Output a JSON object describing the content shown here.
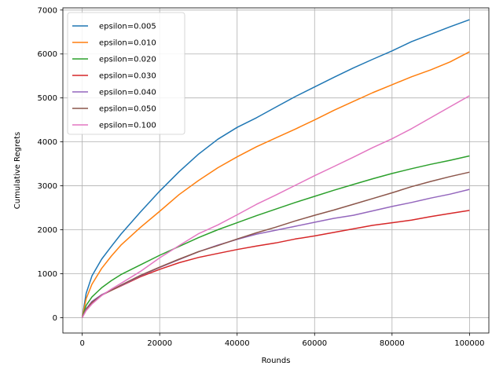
{
  "chart_data": {
    "type": "line",
    "xlabel": "Rounds",
    "ylabel": "Cumulative Regrets",
    "xlim": [
      -5000,
      105000
    ],
    "ylim": [
      -350,
      7050
    ],
    "xticks": [
      0,
      20000,
      40000,
      60000,
      80000,
      100000
    ],
    "yticks": [
      0,
      1000,
      2000,
      3000,
      4000,
      5000,
      6000,
      7000
    ],
    "grid": true,
    "legend_position": "upper-left",
    "x": [
      0,
      1000,
      2500,
      5000,
      7500,
      10000,
      15000,
      20000,
      25000,
      30000,
      35000,
      40000,
      45000,
      50000,
      55000,
      60000,
      65000,
      70000,
      75000,
      80000,
      85000,
      90000,
      95000,
      100000
    ],
    "series": [
      {
        "name": "epsilon=0.005",
        "color": "#1f77b4",
        "values": [
          0,
          550,
          950,
          1330,
          1620,
          1900,
          2400,
          2880,
          3320,
          3720,
          4060,
          4330,
          4550,
          4790,
          5030,
          5250,
          5470,
          5680,
          5880,
          6070,
          6280,
          6450,
          6620,
          6780
        ]
      },
      {
        "name": "epsilon=0.010",
        "color": "#ff7f0e",
        "values": [
          0,
          430,
          760,
          1120,
          1400,
          1650,
          2050,
          2420,
          2800,
          3120,
          3410,
          3660,
          3890,
          4090,
          4290,
          4500,
          4720,
          4920,
          5120,
          5300,
          5480,
          5640,
          5820,
          6050
        ]
      },
      {
        "name": "epsilon=0.020",
        "color": "#2ca02c",
        "values": [
          0,
          280,
          470,
          680,
          840,
          980,
          1200,
          1420,
          1620,
          1820,
          2000,
          2160,
          2320,
          2470,
          2620,
          2760,
          2900,
          3030,
          3160,
          3280,
          3390,
          3490,
          3580,
          3680
        ]
      },
      {
        "name": "epsilon=0.030",
        "color": "#d62728",
        "values": [
          0,
          180,
          330,
          520,
          620,
          720,
          930,
          1100,
          1250,
          1370,
          1460,
          1550,
          1630,
          1700,
          1790,
          1860,
          1940,
          2020,
          2100,
          2160,
          2220,
          2300,
          2370,
          2440
        ]
      },
      {
        "name": "epsilon=0.040",
        "color": "#9467bd",
        "values": [
          0,
          200,
          370,
          520,
          630,
          730,
          950,
          1140,
          1320,
          1500,
          1650,
          1780,
          1900,
          1990,
          2080,
          2170,
          2260,
          2330,
          2430,
          2530,
          2620,
          2720,
          2810,
          2920
        ]
      },
      {
        "name": "epsilon=0.050",
        "color": "#8c564b",
        "values": [
          0,
          190,
          350,
          510,
          620,
          740,
          960,
          1150,
          1330,
          1500,
          1640,
          1790,
          1930,
          2060,
          2200,
          2330,
          2450,
          2580,
          2710,
          2840,
          2980,
          3100,
          3210,
          3310
        ]
      },
      {
        "name": "epsilon=0.100",
        "color": "#e377c2",
        "values": [
          0,
          160,
          310,
          500,
          650,
          780,
          1050,
          1360,
          1640,
          1910,
          2110,
          2340,
          2580,
          2790,
          3010,
          3230,
          3440,
          3650,
          3870,
          4070,
          4300,
          4550,
          4800,
          5050
        ]
      }
    ]
  }
}
